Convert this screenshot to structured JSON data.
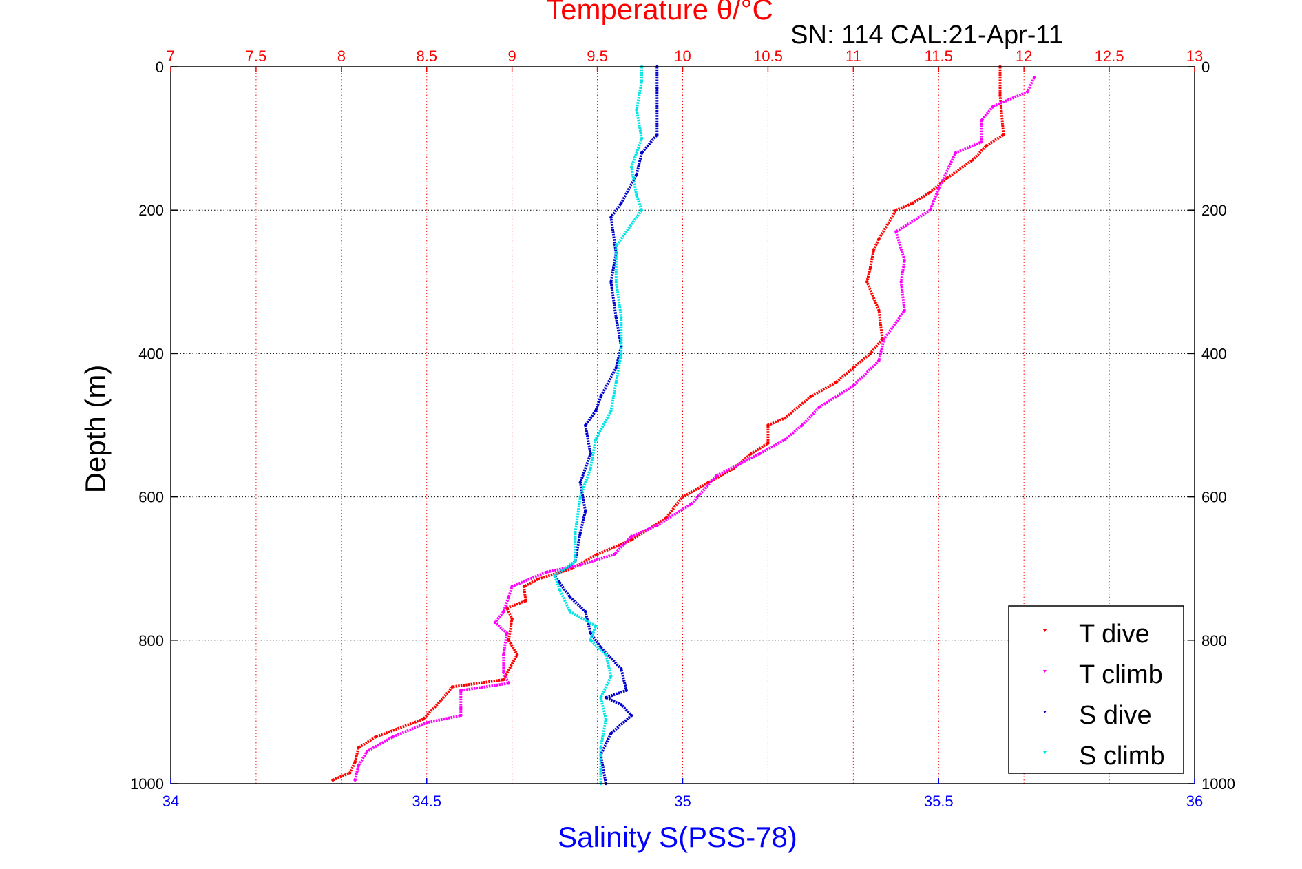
{
  "chart_data": {
    "type": "scatter",
    "title": "Temperature θ/°C",
    "subtitle": "SN: 114  CAL:21-Apr-11",
    "xlabel": "Salinity S(PSS-78)",
    "ylabel": "Depth (m)",
    "x_temperature_lim": [
      7,
      13
    ],
    "x_temperature_ticks": [
      "7",
      "7.5",
      "8",
      "8.5",
      "9",
      "9.5",
      "10",
      "10.5",
      "11",
      "11.5",
      "12",
      "12.5",
      "13"
    ],
    "x_salinity_lim": [
      34,
      36
    ],
    "x_salinity_ticks": [
      "34",
      "34.5",
      "35",
      "35.5",
      "36"
    ],
    "ylim": [
      0,
      1000
    ],
    "y_ticks": [
      "0",
      "200",
      "400",
      "600",
      "800",
      "1000"
    ],
    "y_reversed": true,
    "grid": true,
    "legend_position": "bottom-right",
    "colors": {
      "t_dive": "#ff0000",
      "t_climb": "#ff00ff",
      "s_dive": "#0000cc",
      "s_climb": "#00e5e5"
    },
    "series": [
      {
        "name": "T dive",
        "axis": "temperature",
        "points": [
          [
            11.86,
            0
          ],
          [
            11.86,
            40
          ],
          [
            11.88,
            95
          ],
          [
            11.78,
            110
          ],
          [
            11.7,
            130
          ],
          [
            11.55,
            155
          ],
          [
            11.45,
            175
          ],
          [
            11.35,
            190
          ],
          [
            11.25,
            200
          ],
          [
            11.15,
            240
          ],
          [
            11.12,
            255
          ],
          [
            11.1,
            280
          ],
          [
            11.08,
            300
          ],
          [
            11.15,
            340
          ],
          [
            11.17,
            380
          ],
          [
            11.1,
            400
          ],
          [
            11.0,
            420
          ],
          [
            10.9,
            440
          ],
          [
            10.75,
            460
          ],
          [
            10.6,
            490
          ],
          [
            10.5,
            500
          ],
          [
            10.5,
            525
          ],
          [
            10.4,
            540
          ],
          [
            10.3,
            560
          ],
          [
            10.15,
            580
          ],
          [
            10.0,
            600
          ],
          [
            9.9,
            630
          ],
          [
            9.7,
            660
          ],
          [
            9.5,
            680
          ],
          [
            9.35,
            700
          ],
          [
            9.15,
            715
          ],
          [
            9.07,
            725
          ],
          [
            9.08,
            745
          ],
          [
            8.97,
            755
          ],
          [
            9.0,
            770
          ],
          [
            8.98,
            800
          ],
          [
            9.03,
            820
          ],
          [
            8.95,
            855
          ],
          [
            8.65,
            865
          ],
          [
            8.58,
            885
          ],
          [
            8.48,
            910
          ],
          [
            8.2,
            935
          ],
          [
            8.1,
            950
          ],
          [
            8.08,
            970
          ],
          [
            8.05,
            985
          ],
          [
            7.95,
            995
          ]
        ]
      },
      {
        "name": "T climb",
        "axis": "temperature",
        "points": [
          [
            12.06,
            15
          ],
          [
            12.02,
            35
          ],
          [
            11.82,
            55
          ],
          [
            11.75,
            75
          ],
          [
            11.75,
            105
          ],
          [
            11.6,
            120
          ],
          [
            11.5,
            170
          ],
          [
            11.45,
            200
          ],
          [
            11.25,
            230
          ],
          [
            11.3,
            270
          ],
          [
            11.28,
            300
          ],
          [
            11.3,
            340
          ],
          [
            11.18,
            380
          ],
          [
            11.15,
            410
          ],
          [
            11.0,
            445
          ],
          [
            10.8,
            475
          ],
          [
            10.7,
            500
          ],
          [
            10.6,
            520
          ],
          [
            10.45,
            540
          ],
          [
            10.2,
            570
          ],
          [
            10.05,
            610
          ],
          [
            9.85,
            640
          ],
          [
            9.7,
            655
          ],
          [
            9.6,
            680
          ],
          [
            9.4,
            695
          ],
          [
            9.2,
            705
          ],
          [
            9.0,
            725
          ],
          [
            8.98,
            740
          ],
          [
            8.95,
            760
          ],
          [
            8.9,
            775
          ],
          [
            8.97,
            790
          ],
          [
            8.95,
            820
          ],
          [
            8.95,
            845
          ],
          [
            8.98,
            860
          ],
          [
            8.7,
            870
          ],
          [
            8.7,
            895
          ],
          [
            8.7,
            905
          ],
          [
            8.5,
            915
          ],
          [
            8.3,
            935
          ],
          [
            8.15,
            955
          ],
          [
            8.1,
            975
          ],
          [
            8.08,
            995
          ]
        ]
      },
      {
        "name": "S dive",
        "axis": "salinity",
        "points": [
          [
            34.95,
            0
          ],
          [
            34.95,
            30
          ],
          [
            34.95,
            95
          ],
          [
            34.92,
            120
          ],
          [
            34.91,
            150
          ],
          [
            34.88,
            190
          ],
          [
            34.86,
            210
          ],
          [
            34.87,
            260
          ],
          [
            34.86,
            300
          ],
          [
            34.87,
            350
          ],
          [
            34.88,
            390
          ],
          [
            34.87,
            420
          ],
          [
            34.84,
            460
          ],
          [
            34.83,
            480
          ],
          [
            34.81,
            500
          ],
          [
            34.82,
            540
          ],
          [
            34.8,
            580
          ],
          [
            34.81,
            620
          ],
          [
            34.8,
            650
          ],
          [
            34.79,
            690
          ],
          [
            34.75,
            710
          ],
          [
            34.76,
            720
          ],
          [
            34.78,
            740
          ],
          [
            34.81,
            760
          ],
          [
            34.82,
            790
          ],
          [
            34.84,
            810
          ],
          [
            34.88,
            840
          ],
          [
            34.89,
            870
          ],
          [
            34.85,
            880
          ],
          [
            34.88,
            890
          ],
          [
            34.9,
            905
          ],
          [
            34.86,
            930
          ],
          [
            34.84,
            960
          ],
          [
            34.85,
            1000
          ]
        ]
      },
      {
        "name": "S climb",
        "axis": "salinity",
        "points": [
          [
            34.92,
            0
          ],
          [
            34.92,
            20
          ],
          [
            34.91,
            60
          ],
          [
            34.92,
            100
          ],
          [
            34.9,
            140
          ],
          [
            34.91,
            180
          ],
          [
            34.92,
            200
          ],
          [
            34.87,
            250
          ],
          [
            34.87,
            300
          ],
          [
            34.88,
            350
          ],
          [
            34.88,
            400
          ],
          [
            34.87,
            440
          ],
          [
            34.86,
            480
          ],
          [
            34.83,
            520
          ],
          [
            34.82,
            560
          ],
          [
            34.8,
            600
          ],
          [
            34.79,
            650
          ],
          [
            34.79,
            690
          ],
          [
            34.75,
            710
          ],
          [
            34.76,
            730
          ],
          [
            34.78,
            760
          ],
          [
            34.83,
            780
          ],
          [
            34.82,
            800
          ],
          [
            34.85,
            820
          ],
          [
            34.86,
            850
          ],
          [
            34.84,
            880
          ],
          [
            34.85,
            910
          ],
          [
            34.84,
            950
          ],
          [
            34.84,
            980
          ],
          [
            34.84,
            1000
          ]
        ]
      }
    ]
  }
}
